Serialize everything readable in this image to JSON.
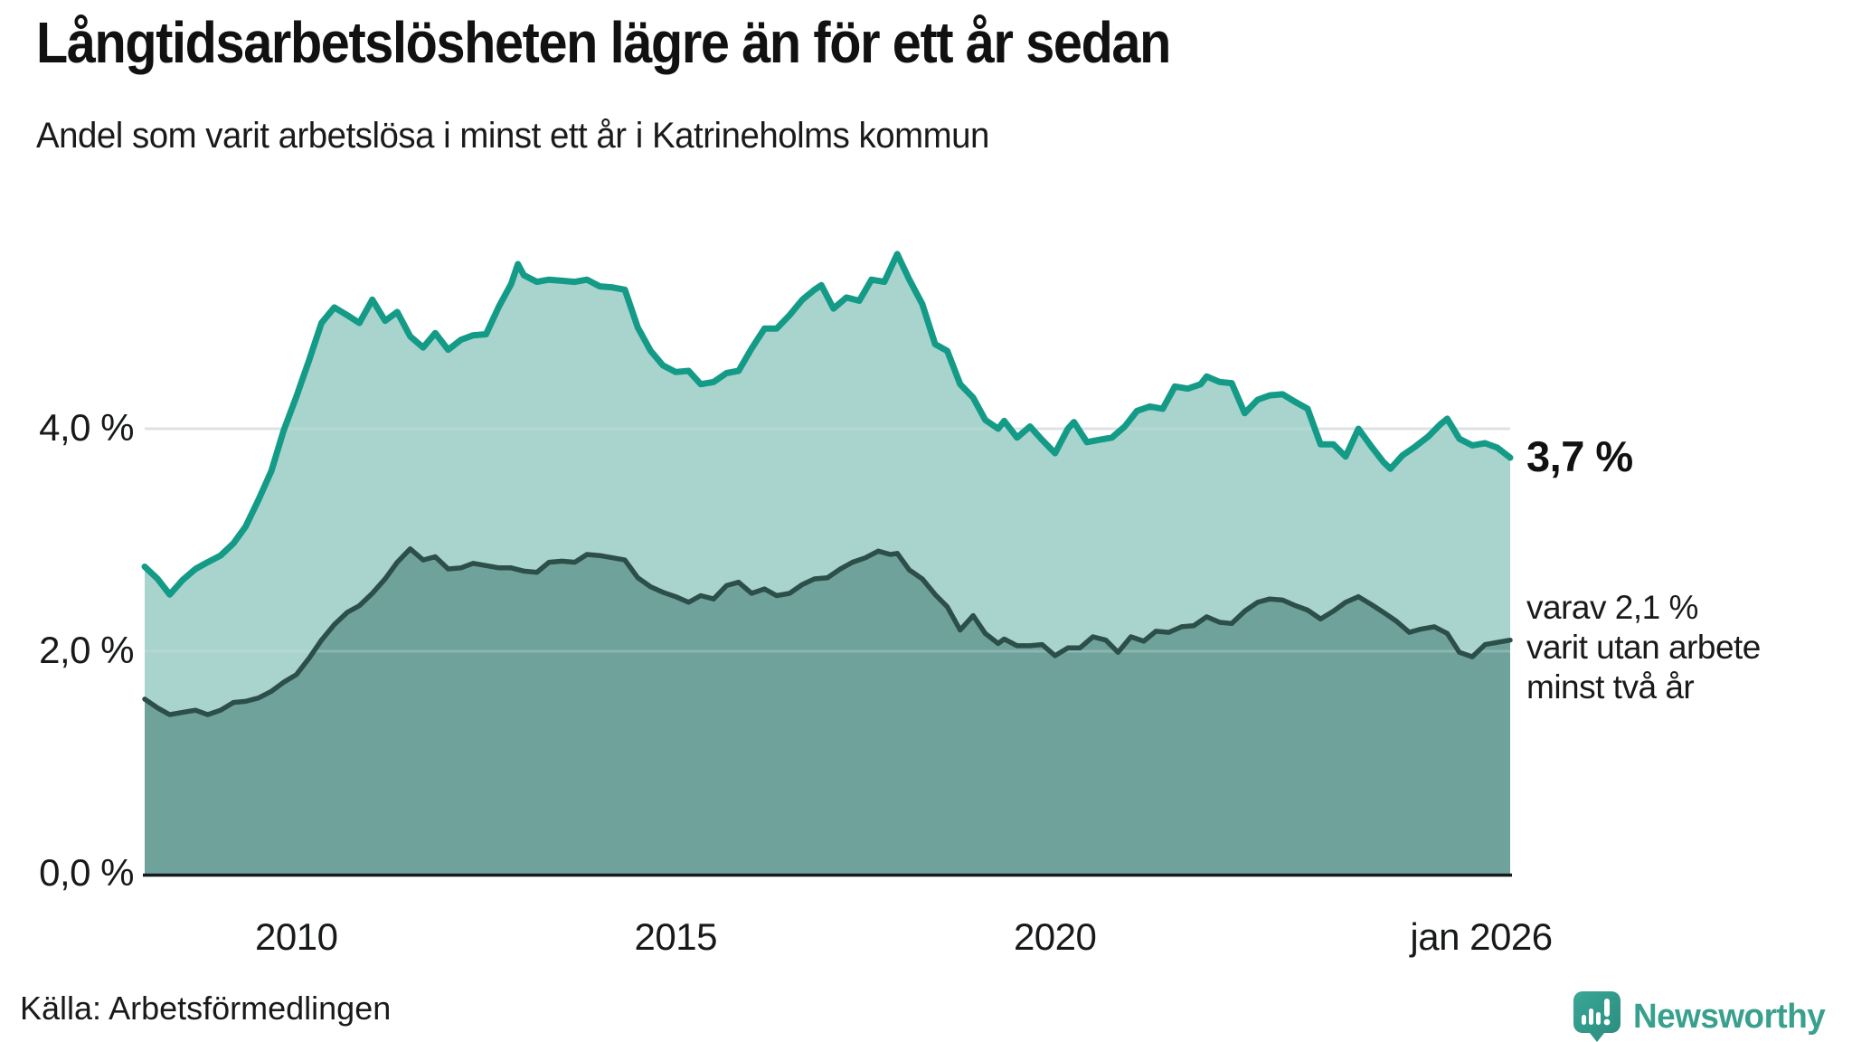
{
  "header": {
    "title": "Långtidsarbetslösheten lägre än för ett år sedan",
    "subtitle": "Andel som varit arbetslösa i minst ett år i Katrineholms kommun"
  },
  "annotations": {
    "latest_total_label": "3,7 %",
    "secondary_lines": [
      "varav 2,1 %",
      "varit utan arbete",
      "minst två år"
    ]
  },
  "footer": {
    "source": "Källa: Arbetsförmedlingen",
    "brand_name": "Newsworthy",
    "brand_icon": "bar-chart-speech-bubble-icon"
  },
  "colors": {
    "line_total": "#149b87",
    "fill_total": "#a8d5cd",
    "line_two_years": "#2c4f49",
    "fill_two_years": "#70a29b",
    "gridline": "#d6dade",
    "axis": "#17191b",
    "brand_teal": "#39a08e",
    "text": "#1a1a1a"
  },
  "chart_data": {
    "type": "area",
    "title": "Långtidsarbetslösheten lägre än för ett år sedan",
    "subtitle": "Andel som varit arbetslösa i minst ett år i Katrineholms kommun",
    "unit": "%",
    "x_range": [
      2008.0,
      2026.0
    ],
    "y_range": [
      0,
      6
    ],
    "grid": "horizontal-only",
    "legend_position": "none",
    "x_axis": {
      "ticks": [
        {
          "label": "2010",
          "year": 2010
        },
        {
          "label": "2015",
          "year": 2015
        },
        {
          "label": "2020",
          "year": 2020
        },
        {
          "label": "jan 2026",
          "year": 2026
        }
      ]
    },
    "y_axis": {
      "ticks": [
        {
          "label": "0,0 %",
          "value": 0
        },
        {
          "label": "2,0 %",
          "value": 2
        },
        {
          "label": "4,0 %",
          "value": 4
        }
      ],
      "gridline_values": [
        2,
        4
      ]
    },
    "series": [
      {
        "name": "Arbetslösa minst ett år",
        "latest_value": 3.7,
        "points": [
          [
            2008.0,
            2.76
          ],
          [
            2008.17,
            2.65
          ],
          [
            2008.33,
            2.51
          ],
          [
            2008.5,
            2.64
          ],
          [
            2008.67,
            2.74
          ],
          [
            2008.83,
            2.8
          ],
          [
            2009.0,
            2.86
          ],
          [
            2009.17,
            2.97
          ],
          [
            2009.33,
            3.12
          ],
          [
            2009.5,
            3.36
          ],
          [
            2009.67,
            3.62
          ],
          [
            2009.83,
            3.98
          ],
          [
            2010.0,
            4.29
          ],
          [
            2010.17,
            4.62
          ],
          [
            2010.33,
            4.95
          ],
          [
            2010.5,
            5.09
          ],
          [
            2010.67,
            5.02
          ],
          [
            2010.83,
            4.95
          ],
          [
            2011.0,
            5.16
          ],
          [
            2011.17,
            4.97
          ],
          [
            2011.33,
            5.05
          ],
          [
            2011.5,
            4.83
          ],
          [
            2011.67,
            4.73
          ],
          [
            2011.83,
            4.86
          ],
          [
            2012.0,
            4.71
          ],
          [
            2012.17,
            4.8
          ],
          [
            2012.33,
            4.84
          ],
          [
            2012.5,
            4.85
          ],
          [
            2012.67,
            5.1
          ],
          [
            2012.83,
            5.3
          ],
          [
            2012.92,
            5.48
          ],
          [
            2013.0,
            5.38
          ],
          [
            2013.17,
            5.32
          ],
          [
            2013.33,
            5.34
          ],
          [
            2013.5,
            5.33
          ],
          [
            2013.67,
            5.32
          ],
          [
            2013.83,
            5.34
          ],
          [
            2014.0,
            5.28
          ],
          [
            2014.17,
            5.27
          ],
          [
            2014.33,
            5.25
          ],
          [
            2014.5,
            4.91
          ],
          [
            2014.67,
            4.7
          ],
          [
            2014.83,
            4.57
          ],
          [
            2015.0,
            4.51
          ],
          [
            2015.17,
            4.52
          ],
          [
            2015.33,
            4.4
          ],
          [
            2015.5,
            4.42
          ],
          [
            2015.67,
            4.5
          ],
          [
            2015.83,
            4.52
          ],
          [
            2016.0,
            4.72
          ],
          [
            2016.17,
            4.9
          ],
          [
            2016.33,
            4.9
          ],
          [
            2016.5,
            5.02
          ],
          [
            2016.67,
            5.16
          ],
          [
            2016.83,
            5.25
          ],
          [
            2016.92,
            5.29
          ],
          [
            2017.08,
            5.08
          ],
          [
            2017.25,
            5.18
          ],
          [
            2017.42,
            5.15
          ],
          [
            2017.58,
            5.34
          ],
          [
            2017.75,
            5.32
          ],
          [
            2017.92,
            5.57
          ],
          [
            2018.08,
            5.34
          ],
          [
            2018.25,
            5.12
          ],
          [
            2018.42,
            4.76
          ],
          [
            2018.58,
            4.7
          ],
          [
            2018.75,
            4.4
          ],
          [
            2018.92,
            4.28
          ],
          [
            2019.08,
            4.08
          ],
          [
            2019.25,
            4.0
          ],
          [
            2019.33,
            4.07
          ],
          [
            2019.5,
            3.92
          ],
          [
            2019.67,
            4.02
          ],
          [
            2019.83,
            3.9
          ],
          [
            2020.0,
            3.78
          ],
          [
            2020.17,
            4.0
          ],
          [
            2020.25,
            4.06
          ],
          [
            2020.42,
            3.88
          ],
          [
            2020.58,
            3.9
          ],
          [
            2020.75,
            3.92
          ],
          [
            2020.92,
            4.02
          ],
          [
            2021.08,
            4.16
          ],
          [
            2021.25,
            4.2
          ],
          [
            2021.42,
            4.18
          ],
          [
            2021.58,
            4.38
          ],
          [
            2021.75,
            4.36
          ],
          [
            2021.92,
            4.4
          ],
          [
            2022.0,
            4.47
          ],
          [
            2022.17,
            4.42
          ],
          [
            2022.33,
            4.41
          ],
          [
            2022.5,
            4.14
          ],
          [
            2022.67,
            4.26
          ],
          [
            2022.83,
            4.3
          ],
          [
            2023.0,
            4.31
          ],
          [
            2023.17,
            4.24
          ],
          [
            2023.33,
            4.18
          ],
          [
            2023.5,
            3.86
          ],
          [
            2023.67,
            3.86
          ],
          [
            2023.83,
            3.75
          ],
          [
            2024.0,
            4.0
          ],
          [
            2024.17,
            3.84
          ],
          [
            2024.33,
            3.7
          ],
          [
            2024.42,
            3.64
          ],
          [
            2024.58,
            3.76
          ],
          [
            2024.75,
            3.84
          ],
          [
            2024.92,
            3.93
          ],
          [
            2025.08,
            4.04
          ],
          [
            2025.17,
            4.09
          ],
          [
            2025.33,
            3.91
          ],
          [
            2025.5,
            3.85
          ],
          [
            2025.67,
            3.87
          ],
          [
            2025.83,
            3.83
          ],
          [
            2026.0,
            3.74
          ]
        ]
      },
      {
        "name": "Varit utan arbete minst två år",
        "latest_value": 2.1,
        "points": [
          [
            2008.0,
            1.57
          ],
          [
            2008.17,
            1.49
          ],
          [
            2008.33,
            1.43
          ],
          [
            2008.5,
            1.45
          ],
          [
            2008.67,
            1.47
          ],
          [
            2008.83,
            1.43
          ],
          [
            2009.0,
            1.47
          ],
          [
            2009.17,
            1.54
          ],
          [
            2009.33,
            1.55
          ],
          [
            2009.5,
            1.58
          ],
          [
            2009.67,
            1.64
          ],
          [
            2009.83,
            1.72
          ],
          [
            2010.0,
            1.79
          ],
          [
            2010.17,
            1.94
          ],
          [
            2010.33,
            2.1
          ],
          [
            2010.5,
            2.24
          ],
          [
            2010.67,
            2.35
          ],
          [
            2010.83,
            2.41
          ],
          [
            2011.0,
            2.52
          ],
          [
            2011.17,
            2.65
          ],
          [
            2011.33,
            2.8
          ],
          [
            2011.5,
            2.92
          ],
          [
            2011.67,
            2.82
          ],
          [
            2011.83,
            2.85
          ],
          [
            2012.0,
            2.74
          ],
          [
            2012.17,
            2.75
          ],
          [
            2012.33,
            2.79
          ],
          [
            2012.5,
            2.77
          ],
          [
            2012.67,
            2.75
          ],
          [
            2012.83,
            2.75
          ],
          [
            2013.0,
            2.72
          ],
          [
            2013.17,
            2.71
          ],
          [
            2013.33,
            2.8
          ],
          [
            2013.5,
            2.81
          ],
          [
            2013.67,
            2.8
          ],
          [
            2013.83,
            2.87
          ],
          [
            2014.0,
            2.86
          ],
          [
            2014.17,
            2.84
          ],
          [
            2014.33,
            2.82
          ],
          [
            2014.5,
            2.66
          ],
          [
            2014.67,
            2.58
          ],
          [
            2014.83,
            2.53
          ],
          [
            2015.0,
            2.49
          ],
          [
            2015.17,
            2.44
          ],
          [
            2015.33,
            2.5
          ],
          [
            2015.5,
            2.47
          ],
          [
            2015.67,
            2.59
          ],
          [
            2015.83,
            2.62
          ],
          [
            2016.0,
            2.52
          ],
          [
            2016.17,
            2.56
          ],
          [
            2016.33,
            2.5
          ],
          [
            2016.5,
            2.52
          ],
          [
            2016.67,
            2.6
          ],
          [
            2016.83,
            2.65
          ],
          [
            2017.0,
            2.66
          ],
          [
            2017.17,
            2.74
          ],
          [
            2017.33,
            2.8
          ],
          [
            2017.5,
            2.84
          ],
          [
            2017.67,
            2.9
          ],
          [
            2017.83,
            2.87
          ],
          [
            2017.92,
            2.88
          ],
          [
            2018.08,
            2.73
          ],
          [
            2018.25,
            2.65
          ],
          [
            2018.42,
            2.51
          ],
          [
            2018.58,
            2.4
          ],
          [
            2018.75,
            2.19
          ],
          [
            2018.92,
            2.32
          ],
          [
            2019.08,
            2.16
          ],
          [
            2019.25,
            2.07
          ],
          [
            2019.33,
            2.11
          ],
          [
            2019.5,
            2.05
          ],
          [
            2019.67,
            2.05
          ],
          [
            2019.83,
            2.06
          ],
          [
            2020.0,
            1.96
          ],
          [
            2020.17,
            2.03
          ],
          [
            2020.33,
            2.03
          ],
          [
            2020.5,
            2.13
          ],
          [
            2020.67,
            2.1
          ],
          [
            2020.83,
            1.99
          ],
          [
            2021.0,
            2.13
          ],
          [
            2021.17,
            2.09
          ],
          [
            2021.33,
            2.18
          ],
          [
            2021.5,
            2.17
          ],
          [
            2021.67,
            2.22
          ],
          [
            2021.83,
            2.23
          ],
          [
            2022.0,
            2.31
          ],
          [
            2022.17,
            2.26
          ],
          [
            2022.33,
            2.25
          ],
          [
            2022.5,
            2.36
          ],
          [
            2022.67,
            2.44
          ],
          [
            2022.83,
            2.47
          ],
          [
            2023.0,
            2.46
          ],
          [
            2023.17,
            2.41
          ],
          [
            2023.33,
            2.37
          ],
          [
            2023.5,
            2.29
          ],
          [
            2023.67,
            2.36
          ],
          [
            2023.83,
            2.44
          ],
          [
            2024.0,
            2.49
          ],
          [
            2024.17,
            2.42
          ],
          [
            2024.33,
            2.35
          ],
          [
            2024.5,
            2.27
          ],
          [
            2024.67,
            2.17
          ],
          [
            2024.83,
            2.2
          ],
          [
            2025.0,
            2.22
          ],
          [
            2025.17,
            2.16
          ],
          [
            2025.33,
            1.99
          ],
          [
            2025.5,
            1.95
          ],
          [
            2025.67,
            2.06
          ],
          [
            2025.83,
            2.08
          ],
          [
            2026.0,
            2.1
          ]
        ]
      }
    ]
  }
}
